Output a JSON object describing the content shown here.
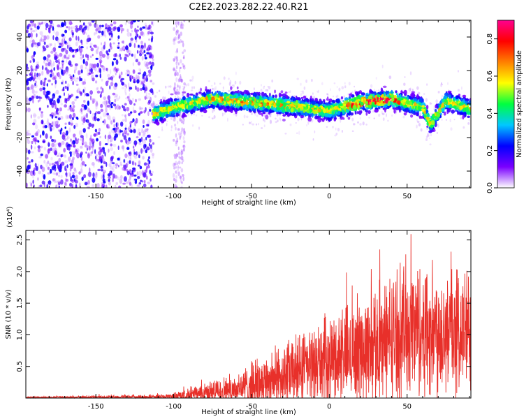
{
  "title": "C2E2.2023.282.22.40.R21",
  "chart_data": [
    {
      "type": "heatmap",
      "xlabel": "Height of straight line (km)",
      "ylabel": "Frequency (Hz)",
      "xlim": [
        -195,
        91
      ],
      "ylim": [
        -50,
        50
      ],
      "x_ticks": [
        -150,
        -100,
        -50,
        0,
        50
      ],
      "y_ticks": [
        -40,
        -20,
        0,
        20,
        40
      ],
      "colorbar": {
        "label": "Normalized spectral amplitude",
        "range": [
          0.0,
          0.9
        ],
        "ticks": [
          0.0,
          0.2,
          0.4,
          0.6,
          0.8
        ],
        "colors": [
          "#ffffff",
          "#7a00ff",
          "#0000ff",
          "#00c8ff",
          "#00ff40",
          "#ffff00",
          "#ff8000",
          "#ff0000",
          "#ff0090"
        ]
      },
      "features": {
        "noise_region_x": [
          -195,
          -113
        ],
        "noise_band_x": [
          -100,
          -93
        ],
        "signal_start_x": -113,
        "signal_center_freq": [
          {
            "x": -113,
            "f": -6
          },
          {
            "x": -100,
            "f": -2
          },
          {
            "x": -75,
            "f": 3
          },
          {
            "x": -50,
            "f": 1
          },
          {
            "x": -25,
            "f": -1
          },
          {
            "x": 0,
            "f": -4
          },
          {
            "x": 20,
            "f": 1
          },
          {
            "x": 40,
            "f": 3
          },
          {
            "x": 60,
            "f": -2
          },
          {
            "x": 65,
            "f": -12
          },
          {
            "x": 75,
            "f": 2
          },
          {
            "x": 91,
            "f": -3
          }
        ]
      }
    },
    {
      "type": "line",
      "xlabel": "Height of straight line (km)",
      "ylabel": "SNR (10 * v/v)",
      "y_multiplier": "(x10⁴)",
      "xlim": [
        -195,
        91
      ],
      "ylim": [
        0,
        2.65
      ],
      "x_ticks": [
        -150,
        -100,
        -50,
        0,
        50
      ],
      "y_ticks": [
        0.5,
        1.0,
        1.5,
        2.0,
        2.5
      ],
      "color": "#e8302a",
      "envelope": [
        {
          "x": -195,
          "mean": 0.01,
          "spread": 0.01
        },
        {
          "x": -105,
          "mean": 0.02,
          "spread": 0.04
        },
        {
          "x": -90,
          "mean": 0.05,
          "spread": 0.1
        },
        {
          "x": -60,
          "mean": 0.15,
          "spread": 0.25
        },
        {
          "x": -30,
          "mean": 0.35,
          "spread": 0.5
        },
        {
          "x": 0,
          "mean": 0.6,
          "spread": 0.7
        },
        {
          "x": 30,
          "mean": 0.85,
          "spread": 0.9
        },
        {
          "x": 50,
          "mean": 1.1,
          "spread": 1.1
        },
        {
          "x": 91,
          "mean": 1.05,
          "spread": 1.0
        }
      ]
    }
  ]
}
